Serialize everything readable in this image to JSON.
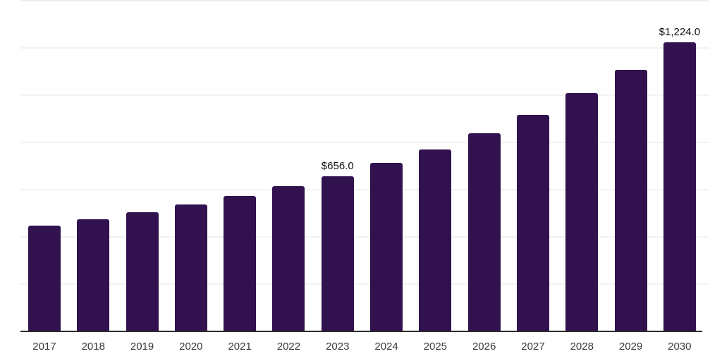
{
  "chart_data": {
    "type": "bar",
    "title": "",
    "xlabel": "",
    "ylabel": "",
    "categories": [
      "2017",
      "2018",
      "2019",
      "2020",
      "2021",
      "2022",
      "2023",
      "2024",
      "2025",
      "2026",
      "2027",
      "2028",
      "2029",
      "2030"
    ],
    "values": [
      449,
      476,
      505,
      538,
      573,
      615,
      656,
      712,
      771,
      840,
      915,
      1008,
      1109,
      1224
    ],
    "point_labels": [
      "",
      "",
      "",
      "",
      "",
      "",
      "$656.0",
      "",
      "",
      "",
      "",
      "",
      "",
      "$1,224.0"
    ],
    "ylim": [
      0,
      1400
    ],
    "gridline_step": 200,
    "grid": true,
    "legend": "none",
    "bar_color": "#31124e",
    "axis_color": "#2d2d2d",
    "gridline_color": "#f2f2f2",
    "top_gridline_color": "#ececec",
    "label_color": "#0f0f0f",
    "tick_color": "#3a3a3a",
    "value_prefix": "$"
  }
}
